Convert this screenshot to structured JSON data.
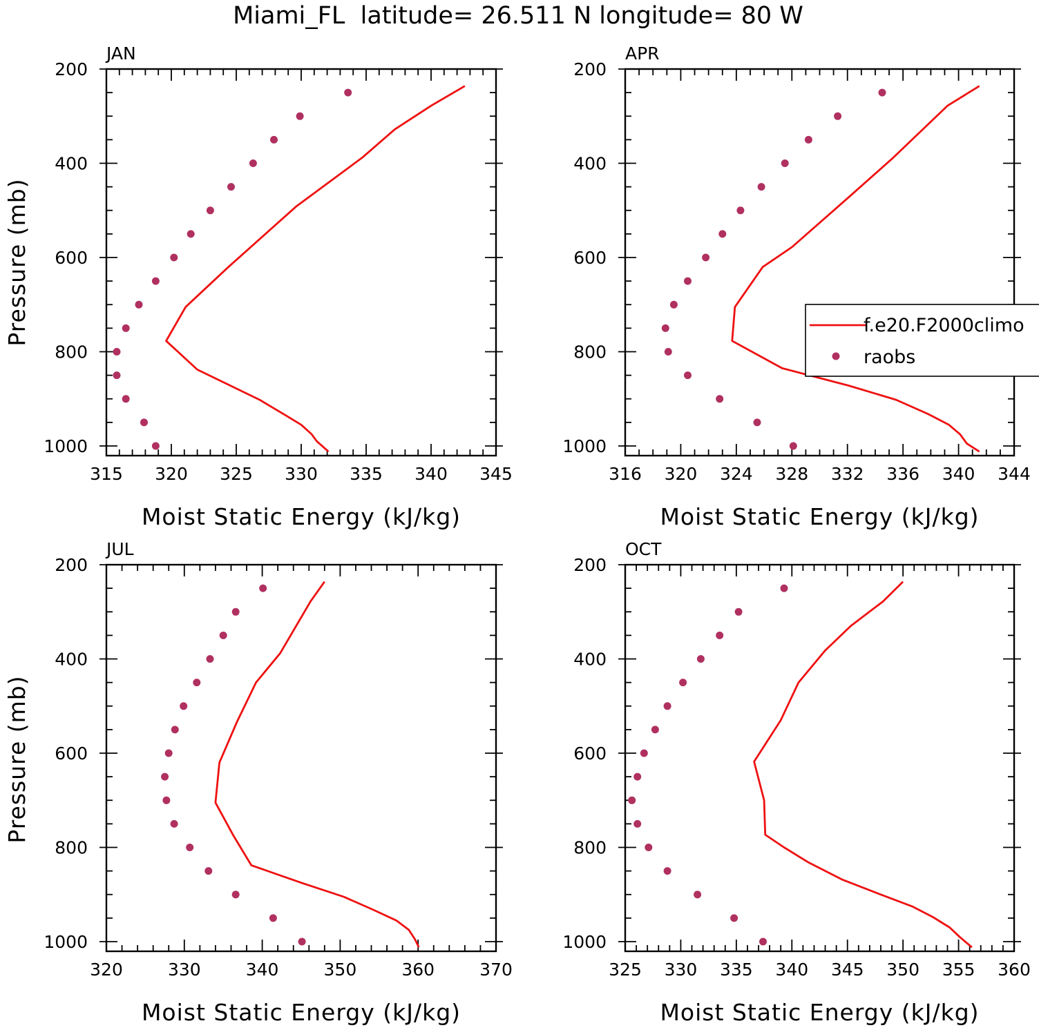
{
  "figure": {
    "title": "Miami_FL  latitude= 26.511 N longitude= 80 W",
    "colors": {
      "model": "#ee1111",
      "obs": "#b03060",
      "axis": "#000000"
    }
  },
  "legend": {
    "model_label": "f.e20.F2000climo",
    "obs_label": "raobs"
  },
  "chart_data": [
    {
      "type": "line",
      "panel": "JAN",
      "xlabel": "Moist Static Energy (kJ/kg)",
      "ylabel": "Pressure (mb)",
      "xlim": [
        315,
        345
      ],
      "xticks": [
        315,
        320,
        325,
        330,
        335,
        340,
        345
      ],
      "xminor": 1,
      "ylim": [
        200,
        1000
      ],
      "yticks": [
        200,
        400,
        600,
        800,
        1000
      ],
      "yminor": 50,
      "y_inverted": true,
      "series": [
        {
          "name": "f.e20.F2000climo",
          "kind": "line",
          "x": [
            342.6,
            340.0,
            337.2,
            334.7,
            329.6,
            324.4,
            321.1,
            319.6,
            322.0,
            326.8,
            328.8,
            330.0,
            330.8,
            331.2,
            332.1
          ],
          "y": [
            236,
            278,
            328,
            388,
            492,
            620,
            705,
            777,
            838,
            902,
            935,
            955,
            975,
            990,
            1012
          ]
        },
        {
          "name": "raobs",
          "kind": "scatter",
          "x": [
            333.6,
            329.9,
            327.9,
            326.3,
            324.6,
            323.0,
            321.5,
            320.2,
            318.8,
            317.5,
            316.5,
            315.8,
            315.8,
            316.5,
            317.9,
            318.8
          ],
          "y": [
            250,
            300,
            350,
            400,
            450,
            500,
            550,
            600,
            650,
            700,
            750,
            800,
            850,
            900,
            950,
            1000
          ]
        }
      ]
    },
    {
      "type": "line",
      "panel": "APR",
      "xlabel": "Moist Static Energy (kJ/kg)",
      "ylabel": "",
      "xlim": [
        316,
        344
      ],
      "xticks": [
        316,
        320,
        324,
        328,
        332,
        336,
        340,
        344
      ],
      "xminor": 1,
      "ylim": [
        200,
        1000
      ],
      "yticks": [
        200,
        400,
        600,
        800,
        1000
      ],
      "yminor": 50,
      "y_inverted": true,
      "series": [
        {
          "name": "f.e20.F2000climo",
          "kind": "line",
          "x": [
            341.5,
            339.2,
            335.3,
            332.1,
            328.0,
            325.9,
            323.9,
            323.7,
            327.3,
            332.1,
            335.5,
            337.8,
            339.3,
            340.1,
            340.6,
            341.5
          ],
          "y": [
            236,
            278,
            388,
            472,
            578,
            620,
            705,
            777,
            835,
            872,
            902,
            932,
            955,
            975,
            995,
            1012
          ]
        },
        {
          "name": "raobs",
          "kind": "scatter",
          "x": [
            334.5,
            331.3,
            329.2,
            327.5,
            325.8,
            324.3,
            323.0,
            321.8,
            320.5,
            319.5,
            318.9,
            319.1,
            320.5,
            322.8,
            325.5,
            328.1
          ],
          "y": [
            250,
            300,
            350,
            400,
            450,
            500,
            550,
            600,
            650,
            700,
            750,
            800,
            850,
            900,
            950,
            1000
          ]
        }
      ]
    },
    {
      "type": "line",
      "panel": "JUL",
      "xlabel": "Moist Static Energy (kJ/kg)",
      "ylabel": "Pressure (mb)",
      "xlim": [
        320,
        370
      ],
      "xticks": [
        320,
        330,
        340,
        350,
        360,
        370
      ],
      "xminor": 2,
      "ylim": [
        200,
        1000
      ],
      "yticks": [
        200,
        400,
        600,
        800,
        1000
      ],
      "yminor": 50,
      "y_inverted": true,
      "series": [
        {
          "name": "f.e20.F2000climo",
          "kind": "line",
          "x": [
            348.0,
            346.2,
            342.3,
            339.2,
            336.8,
            334.5,
            334.0,
            336.3,
            338.6,
            345.0,
            350.5,
            354.2,
            357.2,
            358.8,
            359.6,
            360.1
          ],
          "y": [
            236,
            278,
            388,
            450,
            532,
            620,
            705,
            775,
            838,
            875,
            905,
            932,
            955,
            975,
            995,
            1012
          ]
        },
        {
          "name": "raobs",
          "kind": "scatter",
          "x": [
            340.1,
            336.6,
            335.0,
            333.3,
            331.6,
            329.9,
            328.8,
            328.0,
            327.5,
            327.7,
            328.7,
            330.7,
            333.1,
            336.6,
            341.4,
            345.1
          ],
          "y": [
            250,
            300,
            350,
            400,
            450,
            500,
            550,
            600,
            650,
            700,
            750,
            800,
            850,
            900,
            950,
            1000
          ]
        }
      ]
    },
    {
      "type": "line",
      "panel": "OCT",
      "xlabel": "Moist Static Energy (kJ/kg)",
      "ylabel": "",
      "xlim": [
        325,
        360
      ],
      "xticks": [
        325,
        330,
        335,
        340,
        345,
        350,
        355,
        360
      ],
      "xminor": 1,
      "ylim": [
        200,
        1000
      ],
      "yticks": [
        200,
        400,
        600,
        800,
        1000
      ],
      "yminor": 50,
      "y_inverted": true,
      "series": [
        {
          "name": "f.e20.F2000climo",
          "kind": "line",
          "x": [
            350.0,
            348.2,
            345.3,
            343.0,
            340.6,
            339.0,
            336.6,
            337.5,
            337.6,
            339.3,
            341.5,
            344.5,
            348.0,
            350.8,
            352.7,
            354.2,
            355.1,
            356.2
          ],
          "y": [
            236,
            278,
            330,
            382,
            450,
            530,
            618,
            700,
            773,
            800,
            832,
            868,
            900,
            925,
            948,
            970,
            990,
            1012
          ]
        },
        {
          "name": "raobs",
          "kind": "scatter",
          "x": [
            339.3,
            335.2,
            333.5,
            331.8,
            330.2,
            328.8,
            327.7,
            326.7,
            326.1,
            325.6,
            326.1,
            327.1,
            328.8,
            331.5,
            334.8,
            337.4
          ],
          "y": [
            250,
            300,
            350,
            400,
            450,
            500,
            550,
            600,
            650,
            700,
            750,
            800,
            850,
            900,
            950,
            1000
          ]
        }
      ]
    }
  ]
}
